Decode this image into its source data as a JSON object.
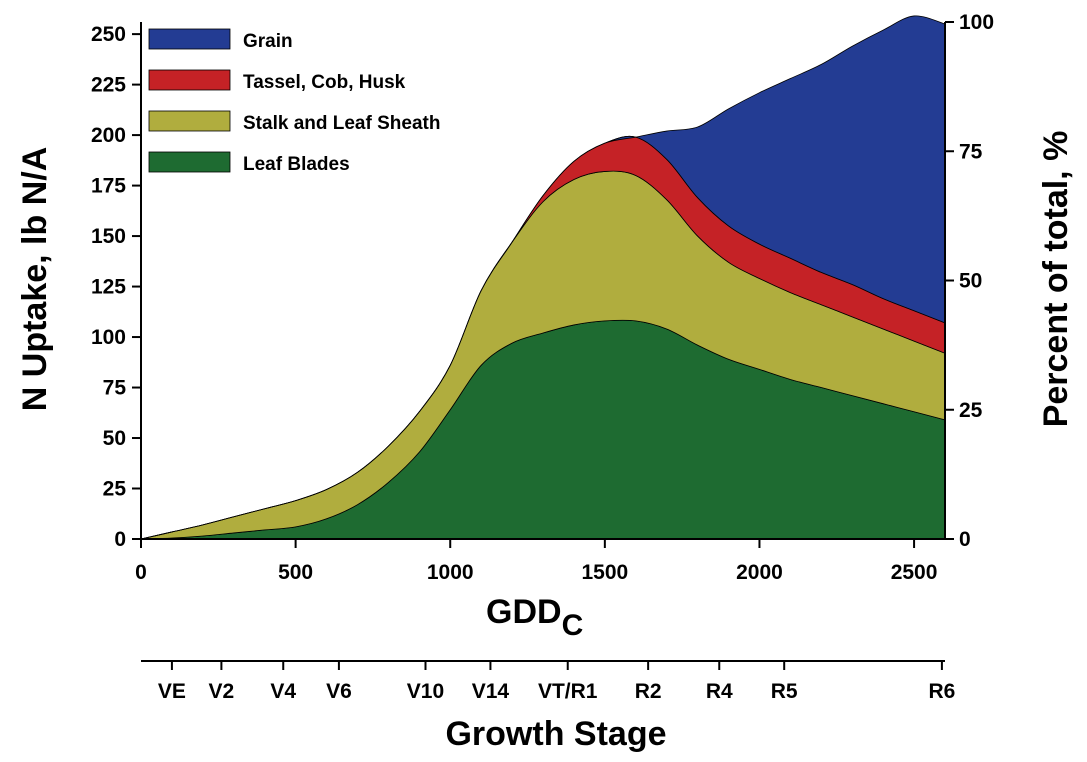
{
  "chart_data": {
    "type": "area",
    "stacked": true,
    "xlabel": "GDD",
    "xlabel_sub": "C",
    "ylabel": "N Uptake, lb N/A",
    "y2label": "Percent of total, %",
    "stage_label": "Growth Stage",
    "xlim": [
      0,
      2600
    ],
    "ylim": [
      0,
      256
    ],
    "y2lim": [
      0,
      100
    ],
    "xticks": [
      0,
      500,
      1000,
      1500,
      2000,
      2500
    ],
    "yticks": [
      0,
      25,
      50,
      75,
      100,
      125,
      150,
      175,
      200,
      225,
      250
    ],
    "y2ticks": [
      0,
      25,
      50,
      75,
      100
    ],
    "legend_position": "top-left",
    "growth_stages": [
      {
        "label": "VE",
        "gdd": 100
      },
      {
        "label": "V2",
        "gdd": 260
      },
      {
        "label": "V4",
        "gdd": 460
      },
      {
        "label": "V6",
        "gdd": 640
      },
      {
        "label": "V10",
        "gdd": 920
      },
      {
        "label": "V14",
        "gdd": 1130
      },
      {
        "label": "VT/R1",
        "gdd": 1380
      },
      {
        "label": "R2",
        "gdd": 1640
      },
      {
        "label": "R4",
        "gdd": 1870
      },
      {
        "label": "R5",
        "gdd": 2080
      },
      {
        "label": "R6",
        "gdd": 2590
      }
    ],
    "x": [
      0,
      100,
      200,
      300,
      400,
      500,
      600,
      700,
      800,
      900,
      1000,
      1100,
      1200,
      1300,
      1400,
      1500,
      1600,
      1700,
      1800,
      1900,
      2000,
      2100,
      2200,
      2300,
      2400,
      2500,
      2600
    ],
    "series": [
      {
        "name": "Leaf Blades",
        "color": "#1e6b31",
        "values": [
          0,
          0.5,
          1.5,
          3,
          4.5,
          6,
          10,
          17,
          28,
          43,
          64,
          86,
          97,
          102,
          106,
          108,
          108,
          104,
          96,
          89,
          84,
          79,
          75,
          71,
          67,
          63,
          59
        ]
      },
      {
        "name": "Stalk and Leaf Sheath",
        "color": "#b0ad3e",
        "values": [
          0,
          3,
          5.5,
          8,
          10.5,
          13,
          14.5,
          16,
          18,
          20,
          22,
          37,
          50,
          65,
          72,
          74,
          72,
          64,
          54,
          48,
          45,
          43,
          41,
          39,
          37,
          35,
          33
        ]
      },
      {
        "name": "Tassel, Cob, Husk",
        "color": "#c52226",
        "values": [
          0,
          0,
          0,
          0,
          0,
          0,
          0,
          0,
          0,
          0,
          0,
          0,
          0,
          3,
          9,
          14,
          19,
          20,
          19,
          18,
          17,
          17,
          16,
          16,
          15,
          15,
          15
        ]
      },
      {
        "name": "Grain",
        "color": "#233c93",
        "values": [
          0,
          0,
          0,
          0,
          0,
          0,
          0,
          0,
          0,
          0,
          0,
          0,
          0,
          0,
          0,
          0,
          0,
          14,
          35,
          58,
          75,
          89,
          103,
          118,
          133,
          146,
          148
        ]
      }
    ]
  }
}
